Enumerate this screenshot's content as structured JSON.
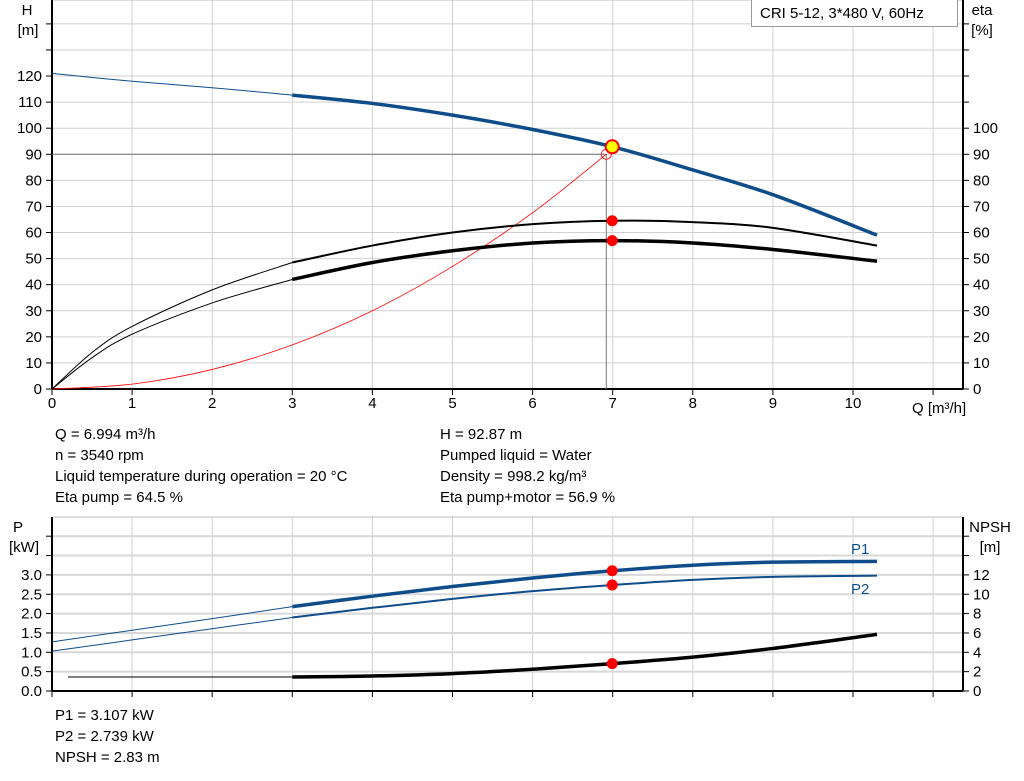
{
  "title": "CRI 5-12, 3*480 V, 60Hz",
  "chart_data": [
    {
      "type": "line",
      "title": "",
      "xlabel": "Q [m³/h]",
      "ylabel_left": "H\n[m]",
      "ylabel_left_parts": [
        "H",
        "[m]"
      ],
      "ylabel_right_parts": [
        "eta",
        "[%]"
      ],
      "xlim": [
        0,
        11
      ],
      "ylim_left": [
        0,
        120
      ],
      "ylim_right": [
        0,
        100
      ],
      "xticks": [
        "0",
        "1",
        "2",
        "3",
        "4",
        "5",
        "6",
        "7",
        "8",
        "9",
        "10"
      ],
      "yticks_left": [
        "0",
        "10",
        "20",
        "30",
        "40",
        "50",
        "60",
        "70",
        "80",
        "90",
        "100",
        "110",
        "120"
      ],
      "yticks_right": [
        "0",
        "10",
        "20",
        "30",
        "40",
        "50",
        "60",
        "70",
        "80",
        "90",
        "100"
      ],
      "grid": true,
      "series": [
        {
          "id": "H",
          "axis": "left",
          "color": "#0f4c8a",
          "x": [
            0,
            1,
            2,
            3,
            4,
            5,
            6,
            7,
            8,
            9,
            10.3
          ],
          "y": [
            121,
            118,
            115.5,
            112.7,
            109.5,
            105,
            99.5,
            92.87,
            84,
            74.5,
            59
          ]
        },
        {
          "id": "eta_pump",
          "axis": "right",
          "color": "#000000",
          "x": [
            0,
            0.5,
            1,
            2,
            3,
            4,
            5,
            6,
            7,
            8,
            9,
            10.3
          ],
          "y": [
            0,
            14,
            24,
            38,
            48.5,
            55,
            60,
            63.2,
            64.5,
            64,
            61.8,
            55
          ]
        },
        {
          "id": "eta_pump_motor",
          "axis": "right",
          "color": "#000000",
          "x": [
            0,
            0.5,
            1,
            2,
            3,
            4,
            5,
            6,
            7,
            8,
            9,
            10.3
          ],
          "y": [
            0,
            12,
            21,
            33,
            42,
            48.5,
            53,
            56,
            56.9,
            56,
            53.5,
            49
          ]
        },
        {
          "id": "system_curve",
          "axis": "left",
          "color": "#ff0000",
          "x": [
            0,
            1,
            2,
            3,
            4,
            5,
            6,
            6.92
          ],
          "y": [
            0,
            1.88,
            7.5,
            16.9,
            30,
            47,
            67.6,
            90
          ]
        }
      ],
      "operating_point": {
        "Q": 6.994,
        "H": 92.87,
        "eta_pump": 64.5,
        "eta_pump_motor": 56.9
      },
      "duty_point": {
        "Q": 6.92,
        "H": 90
      }
    },
    {
      "type": "line",
      "title": "",
      "xlabel": "",
      "ylabel_left_parts": [
        "P",
        "[kW]"
      ],
      "ylabel_right_parts": [
        "NPSH",
        "[m]"
      ],
      "xlim": [
        0,
        11
      ],
      "ylim_left": [
        0,
        4.5
      ],
      "ylim_right": [
        0,
        18
      ],
      "yticks_left": [
        "0.0",
        "0.5",
        "1.0",
        "1.5",
        "2.0",
        "2.5",
        "3.0"
      ],
      "yticks_right": [
        "0",
        "2",
        "4",
        "6",
        "8",
        "10",
        "12"
      ],
      "grid": true,
      "series": [
        {
          "id": "P1",
          "name": "P1",
          "axis": "left",
          "color": "#0f4c8a",
          "x": [
            0,
            1,
            2,
            3,
            4,
            5,
            6,
            7,
            8,
            9,
            10.3
          ],
          "y": [
            1.27,
            1.57,
            1.87,
            2.18,
            2.45,
            2.7,
            2.92,
            3.107,
            3.25,
            3.33,
            3.35
          ]
        },
        {
          "id": "P2",
          "name": "P2",
          "axis": "left",
          "color": "#0f4c8a",
          "x": [
            0,
            1,
            2,
            3,
            4,
            5,
            6,
            7,
            8,
            9,
            10.3
          ],
          "y": [
            1.03,
            1.32,
            1.61,
            1.9,
            2.15,
            2.38,
            2.58,
            2.739,
            2.87,
            2.95,
            2.98
          ]
        },
        {
          "id": "NPSH",
          "axis": "right",
          "color": "#000000",
          "x": [
            0.2,
            3,
            4,
            5,
            6,
            7,
            8,
            9,
            10.3
          ],
          "y": [
            1.45,
            1.45,
            1.55,
            1.8,
            2.25,
            2.83,
            3.5,
            4.4,
            5.85
          ]
        }
      ],
      "operating_point": {
        "Q": 6.994,
        "P1": 3.107,
        "P2": 2.739,
        "NPSH": 2.83
      }
    }
  ],
  "info_left": [
    "Q = 6.994 m³/h",
    "n = 3540 rpm",
    "Liquid temperature during operation = 20 °C",
    "Eta pump = 64.5 %"
  ],
  "info_right": [
    "H = 92.87 m",
    "Pumped liquid = Water",
    "Density = 998.2 kg/m³",
    "Eta pump+motor = 56.9 %"
  ],
  "info_bottom": [
    "P1 = 3.107 kW",
    "P2 = 2.739 kW",
    "NPSH = 2.83 m"
  ]
}
